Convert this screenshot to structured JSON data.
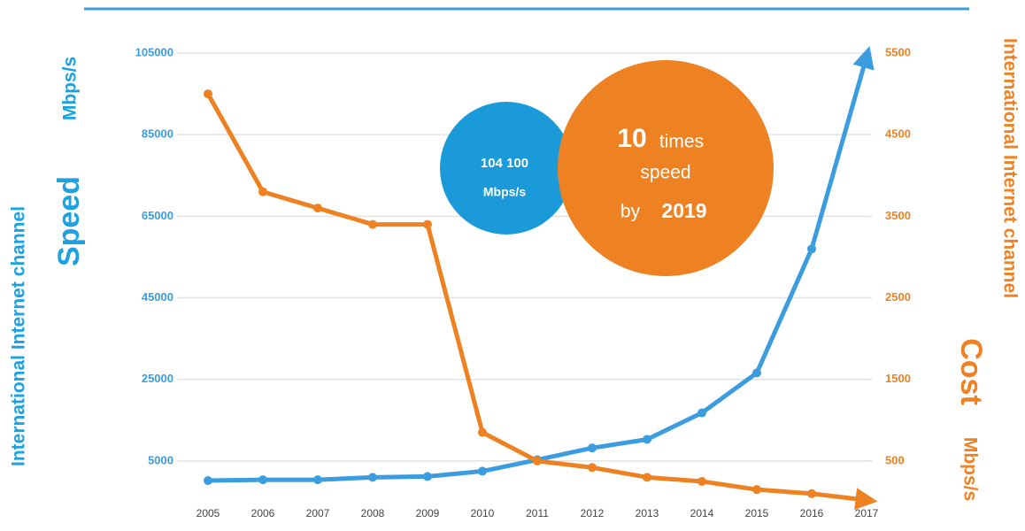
{
  "chart_data": {
    "type": "line",
    "categories": [
      "2005",
      "2006",
      "2007",
      "2008",
      "2009",
      "2010",
      "2011",
      "2012",
      "2013",
      "2014",
      "2015",
      "2016",
      "2017"
    ],
    "series": [
      {
        "name": "Speed",
        "color": "#3b9de0",
        "axis": "y",
        "values": [
          200,
          400,
          400,
          1000,
          1200,
          2500,
          5300,
          8200,
          10300,
          16800,
          26600,
          57000,
          104100
        ]
      },
      {
        "name": "Cost",
        "color": "#ee8222",
        "axis": "y2",
        "values": [
          5000,
          3800,
          3600,
          3400,
          3400,
          850,
          500,
          420,
          300,
          250,
          150,
          100,
          20
        ]
      }
    ],
    "ylim": [
      -5000,
      105000
    ],
    "yticks": [
      105000,
      85000,
      65000,
      45000,
      25000,
      5000
    ],
    "y2lim": [
      0,
      5500
    ],
    "y2ticks": [
      5500,
      4500,
      3500,
      2500,
      1500,
      500
    ],
    "grid": true,
    "y_axis_label": {
      "line1": "International Internet channel",
      "main": "Speed",
      "unit": "Mbps/s"
    },
    "y2_axis_label": {
      "line1": "International Internet channel",
      "main": "Cost",
      "unit": "Mbps/s"
    },
    "annotations": {
      "speed_value": "104 100",
      "speed_unit": "Mbps/s",
      "times_number": "10",
      "times_word": "times",
      "speed_word": "speed",
      "by_word": "by",
      "by_year": "2019"
    }
  }
}
